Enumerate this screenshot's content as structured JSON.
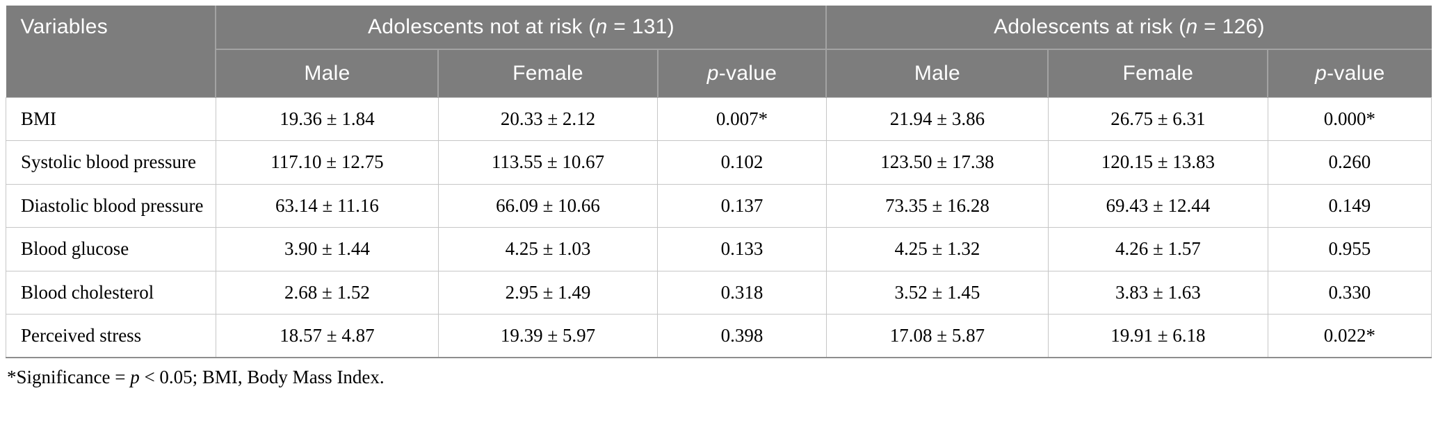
{
  "table": {
    "title_column": "Variables",
    "groups": [
      {
        "prefix": "Adolescents not at risk (",
        "n_symbol": "n",
        "suffix": " = 131)"
      },
      {
        "prefix": "Adolescents at risk (",
        "n_symbol": "n",
        "suffix": " = 126)"
      }
    ],
    "sub_headers": {
      "male": "Male",
      "female": "Female",
      "p_symbol": "p",
      "p_suffix": "-value"
    },
    "rows": [
      {
        "variable": "BMI",
        "values": [
          "19.36 ± 1.84",
          "20.33 ± 2.12",
          "0.007*",
          "21.94 ± 3.86",
          "26.75 ± 6.31",
          "0.000*"
        ]
      },
      {
        "variable": "Systolic blood pressure",
        "values": [
          "117.10 ± 12.75",
          "113.55 ± 10.67",
          "0.102",
          "123.50 ± 17.38",
          "120.15 ± 13.83",
          "0.260"
        ]
      },
      {
        "variable": "Diastolic blood pressure",
        "values": [
          "63.14 ± 11.16",
          "66.09 ± 10.66",
          "0.137",
          "73.35 ± 16.28",
          "69.43 ± 12.44",
          "0.149"
        ]
      },
      {
        "variable": "Blood glucose",
        "values": [
          "3.90 ± 1.44",
          "4.25 ± 1.03",
          "0.133",
          "4.25 ± 1.32",
          "4.26 ± 1.57",
          "0.955"
        ]
      },
      {
        "variable": "Blood cholesterol",
        "values": [
          "2.68 ± 1.52",
          "2.95 ± 1.49",
          "0.318",
          "3.52 ± 1.45",
          "3.83 ± 1.63",
          "0.330"
        ]
      },
      {
        "variable": "Perceived stress",
        "values": [
          "18.57 ± 4.87",
          "19.39 ± 5.97",
          "0.398",
          "17.08 ± 5.87",
          "19.91 ± 6.18",
          "0.022*"
        ]
      }
    ],
    "footnote": {
      "prefix": "*Significance = ",
      "p_symbol": "p",
      "suffix": " < 0.05; BMI, Body Mass Index."
    }
  },
  "colors": {
    "header_bg": "#7d7d7d",
    "header_text": "#ffffff",
    "header_divider": "#a3a3a3",
    "body_border": "#c6c6c6",
    "table_bottom_border": "#8d8d8d",
    "body_text": "#000000"
  }
}
